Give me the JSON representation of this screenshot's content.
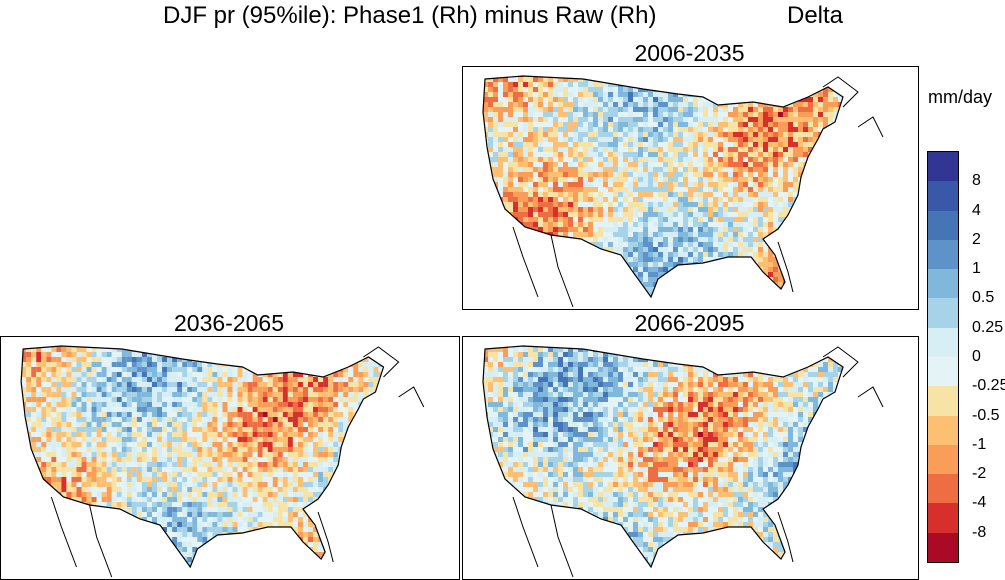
{
  "title": {
    "main": "DJF  pr (95%ile): Phase1 (Rh) minus Raw (Rh)",
    "right": "Delta"
  },
  "panels": [
    {
      "label": "2006-2035"
    },
    {
      "label": "2036-2065"
    },
    {
      "label": "2066-2095"
    }
  ],
  "colorbar": {
    "units": "mm/day",
    "tick_labels": [
      "8",
      "4",
      "2",
      "1",
      "0.5",
      "0.25",
      "0",
      "-0.25",
      "-0.5",
      "-1",
      "-2",
      "-4",
      "-8"
    ],
    "colors": [
      "#313695",
      "#3a58a8",
      "#4575b4",
      "#5d93c8",
      "#80b8db",
      "#a6d3e7",
      "#d7eef5",
      "#e4f3f5",
      "#f8e3a6",
      "#fdc073",
      "#f99d59",
      "#ef6d42",
      "#d7302c",
      "#ab0a27"
    ]
  }
}
